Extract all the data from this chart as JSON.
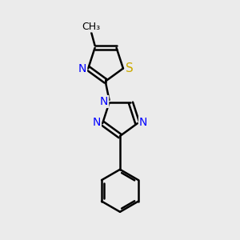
{
  "bg_color": "#ebebeb",
  "bond_color": "#000000",
  "bond_width": 1.8,
  "atom_colors": {
    "C": "#000000",
    "N": "#0000ff",
    "S": "#ccaa00"
  },
  "font_size": 10,
  "fig_size": [
    3.0,
    3.0
  ],
  "dpi": 100,
  "xlim": [
    0,
    10
  ],
  "ylim": [
    0,
    10
  ]
}
